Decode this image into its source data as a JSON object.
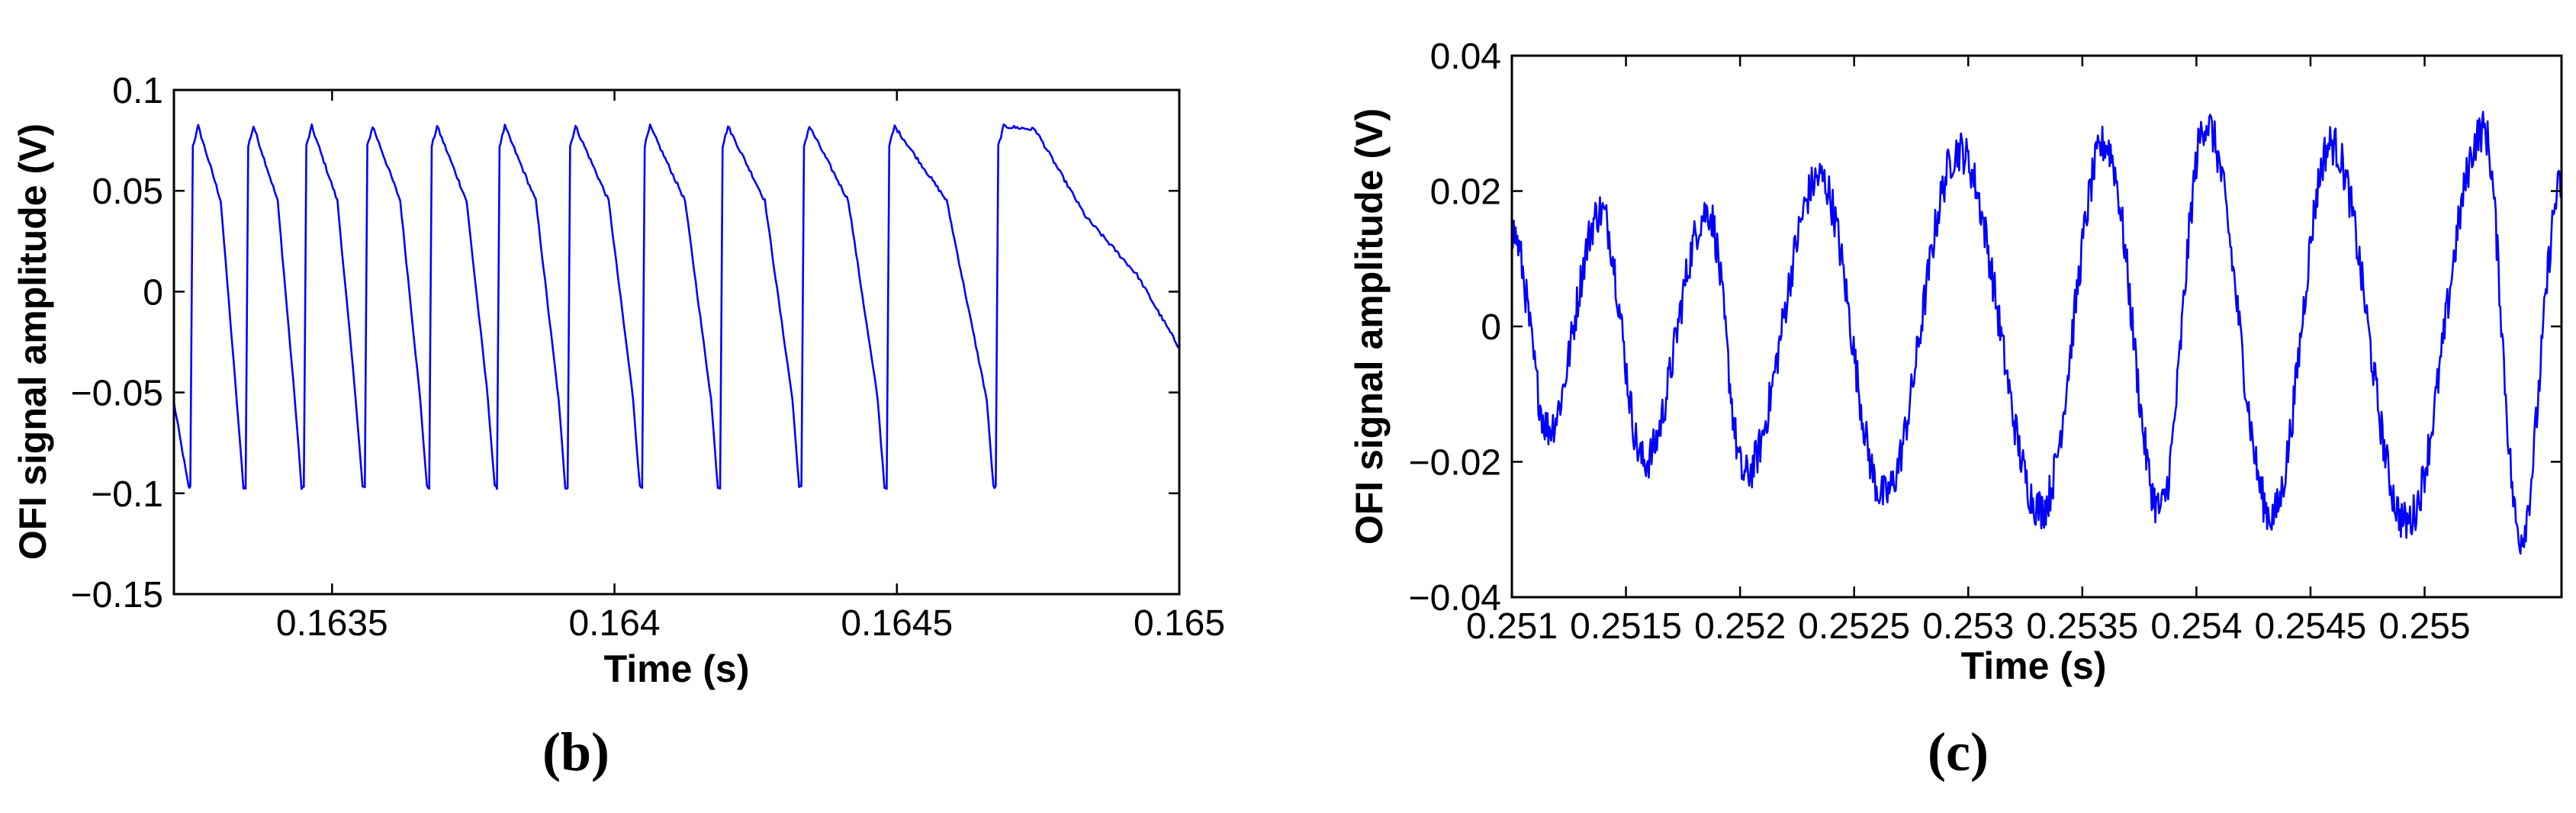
{
  "colors": {
    "trace": "#0000ff",
    "axes": "#000000",
    "background": "#ffffff"
  },
  "chart_data": [
    {
      "id": "b",
      "type": "line",
      "title": "",
      "panel_label": "(b)",
      "xlabel": "Time (s)",
      "ylabel": "OFI signal amplitude (V)",
      "xlim": [
        0.16322,
        0.165
      ],
      "ylim": [
        -0.15,
        0.1
      ],
      "xticks": [
        0.1635,
        0.164,
        0.1645,
        0.165
      ],
      "xtick_labels": [
        "0.1635",
        "0.164",
        "0.1645",
        "0.165"
      ],
      "yticks": [
        -0.15,
        -0.1,
        -0.05,
        0,
        0.05,
        0.1
      ],
      "ytick_labels": [
        "−0.15",
        "−0.1",
        "−0.05",
        "0",
        "0.05",
        "0.1"
      ],
      "grid": false,
      "series": [
        {
          "style": "sawtooth",
          "x_resets": [
            0.163249,
            0.163347,
            0.16345,
            0.163558,
            0.163672,
            0.163792,
            0.163917,
            0.164049,
            0.164187,
            0.164331,
            0.164482,
            0.164675
          ],
          "peak": 0.082,
          "trough": -0.097,
          "start": [
            0.16322,
            -0.055
          ],
          "end": [
            0.165,
            -0.028
          ]
        }
      ]
    },
    {
      "id": "c",
      "type": "line",
      "title": "",
      "panel_label": "(c)",
      "xlabel": "Time (s)",
      "ylabel": "OFI signal amplitude (V)",
      "xlim": [
        0.251,
        0.2556
      ],
      "ylim": [
        -0.04,
        0.04
      ],
      "xticks": [
        0.251,
        0.2515,
        0.252,
        0.2525,
        0.253,
        0.2535,
        0.254,
        0.2545,
        0.255
      ],
      "xtick_labels": [
        "0.251",
        "0.2515",
        "0.252",
        "0.2525",
        "0.253",
        "0.2535",
        "0.254",
        "0.2545",
        "0.255"
      ],
      "yticks": [
        -0.04,
        -0.02,
        0,
        0.02,
        0.04
      ],
      "ytick_labels": [
        "−0.04",
        "−0.02",
        "0",
        "0.02",
        "0.04"
      ],
      "grid": false,
      "series": [
        {
          "style": "noisy-oscillation",
          "peaks": [
            [
              0.251,
              0.014
            ],
            [
              0.25139,
              0.017
            ],
            [
              0.25186,
              0.017
            ],
            [
              0.25235,
              0.022
            ],
            [
              0.25296,
              0.026
            ],
            [
              0.2536,
              0.027
            ],
            [
              0.25404,
              0.03
            ],
            [
              0.25459,
              0.027
            ],
            [
              0.25526,
              0.029
            ],
            [
              0.2556,
              0.021
            ]
          ],
          "troughs": [
            [
              0.25116,
              -0.015
            ],
            [
              0.25158,
              -0.02
            ],
            [
              0.25202,
              -0.022
            ],
            [
              0.25263,
              -0.025
            ],
            [
              0.25332,
              -0.027
            ],
            [
              0.25384,
              -0.027
            ],
            [
              0.25433,
              -0.028
            ],
            [
              0.25492,
              -0.029
            ],
            [
              0.25542,
              -0.031
            ]
          ]
        }
      ]
    }
  ]
}
